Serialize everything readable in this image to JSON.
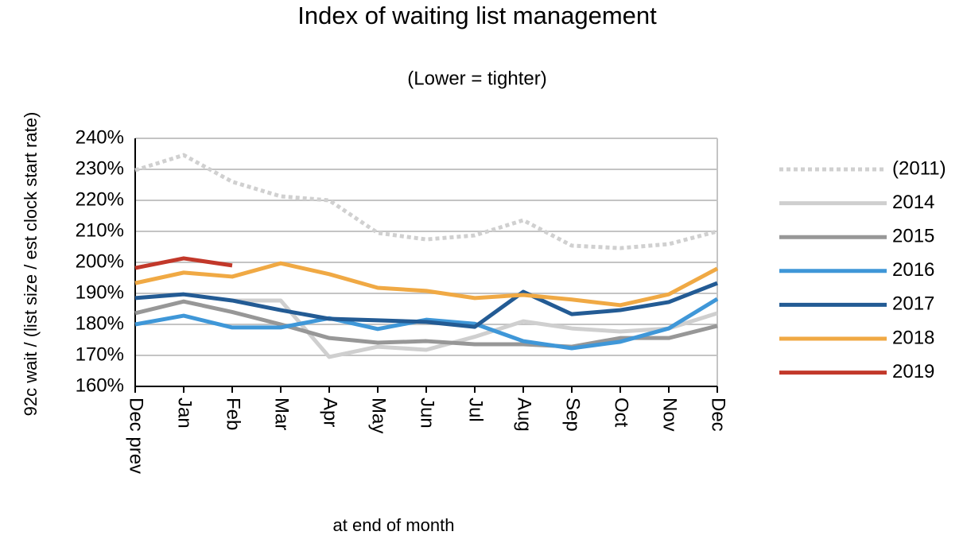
{
  "chart_data": {
    "type": "line",
    "title": "Index of waiting list management",
    "subtitle": "(Lower = tighter)",
    "y_label": "92c wait / (list size / est clock start rate)",
    "x_label": "at end of month",
    "categories": [
      "Dec prev",
      "Jan",
      "Feb",
      "Mar",
      "Apr",
      "May",
      "Jun",
      "Jul",
      "Aug",
      "Sep",
      "Oct",
      "Nov",
      "Dec"
    ],
    "ylim": [
      160,
      240
    ],
    "yticks": [
      {
        "value": 160,
        "label": "160%"
      },
      {
        "value": 170,
        "label": "170%"
      },
      {
        "value": 180,
        "label": "180%"
      },
      {
        "value": 190,
        "label": "190%"
      },
      {
        "value": 200,
        "label": "200%"
      },
      {
        "value": 210,
        "label": "210%"
      },
      {
        "value": 220,
        "label": "220%"
      },
      {
        "value": 230,
        "label": "230%"
      },
      {
        "value": 240,
        "label": "240%"
      }
    ],
    "grid": true,
    "legend": "right",
    "series": [
      {
        "name": "(2011)",
        "color": "#d0d0d0",
        "line_style": "dotted",
        "values": [
          229.7,
          234.6,
          226,
          221.3,
          220,
          209.5,
          207.4,
          208.7,
          213.6,
          205.4,
          204.6,
          205.9,
          210
        ]
      },
      {
        "name": "2014",
        "color": "#cfcfcf",
        "values": [
          null,
          null,
          187.7,
          187.7,
          169.5,
          172.8,
          171.8,
          176,
          181,
          178.7,
          177.7,
          178.7,
          183.6
        ]
      },
      {
        "name": "2015",
        "color": "#979797",
        "values": [
          183.6,
          187.4,
          184,
          180,
          175.6,
          174.1,
          174.6,
          173.6,
          173.6,
          172.8,
          175.6,
          175.6,
          179.5
        ]
      },
      {
        "name": "2016",
        "color": "#3f97d8",
        "values": [
          180,
          182.8,
          179,
          179,
          182,
          178.5,
          181.5,
          180.2,
          174.6,
          172.3,
          174.4,
          178.7,
          188.2
        ]
      },
      {
        "name": "2017",
        "color": "#235b94",
        "values": [
          188.5,
          189.7,
          187.7,
          184.6,
          181.8,
          181.3,
          180.8,
          179.2,
          190.5,
          183.3,
          184.6,
          187.2,
          193.3
        ]
      },
      {
        "name": "2018",
        "color": "#f0a944",
        "values": [
          193.3,
          196.7,
          195.4,
          199.7,
          196.2,
          191.8,
          190.8,
          188.5,
          189.5,
          188,
          186.2,
          189.7,
          198
        ]
      },
      {
        "name": "2019",
        "color": "#c2382a",
        "values": [
          198.2,
          201.3,
          199,
          null,
          null,
          null,
          null,
          null,
          null,
          null,
          null,
          null,
          null
        ]
      }
    ]
  }
}
